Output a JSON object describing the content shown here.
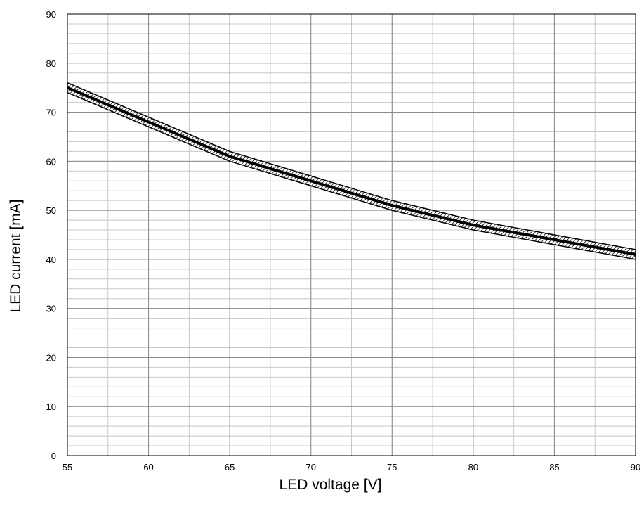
{
  "chart_data": {
    "type": "line",
    "title": "",
    "xlabel": "LED voltage [V]",
    "ylabel": "LED current [mA]",
    "xlim": [
      55,
      90
    ],
    "ylim": [
      0,
      90
    ],
    "x_ticks": [
      55,
      60,
      65,
      70,
      75,
      80,
      85,
      90
    ],
    "y_ticks": [
      0,
      10,
      20,
      30,
      40,
      50,
      60,
      70,
      80,
      90
    ],
    "x_tick_labels": [
      "55",
      "60",
      "65",
      "70",
      "75",
      "80",
      "85",
      "90"
    ],
    "y_tick_labels": [
      "0",
      "10",
      "20",
      "30",
      "40",
      "50",
      "60",
      "70",
      "80",
      "90"
    ],
    "grid": true,
    "grid_minor_x_step": 2.5,
    "grid_minor_y_step": 2,
    "series": [
      {
        "x": [
          55,
          60,
          65,
          70,
          75,
          80,
          85,
          90
        ],
        "y": [
          75,
          68,
          61,
          56,
          51,
          47,
          44,
          41
        ],
        "tolerance": 1,
        "color": "#000000",
        "band_fill": "hatched"
      }
    ]
  }
}
